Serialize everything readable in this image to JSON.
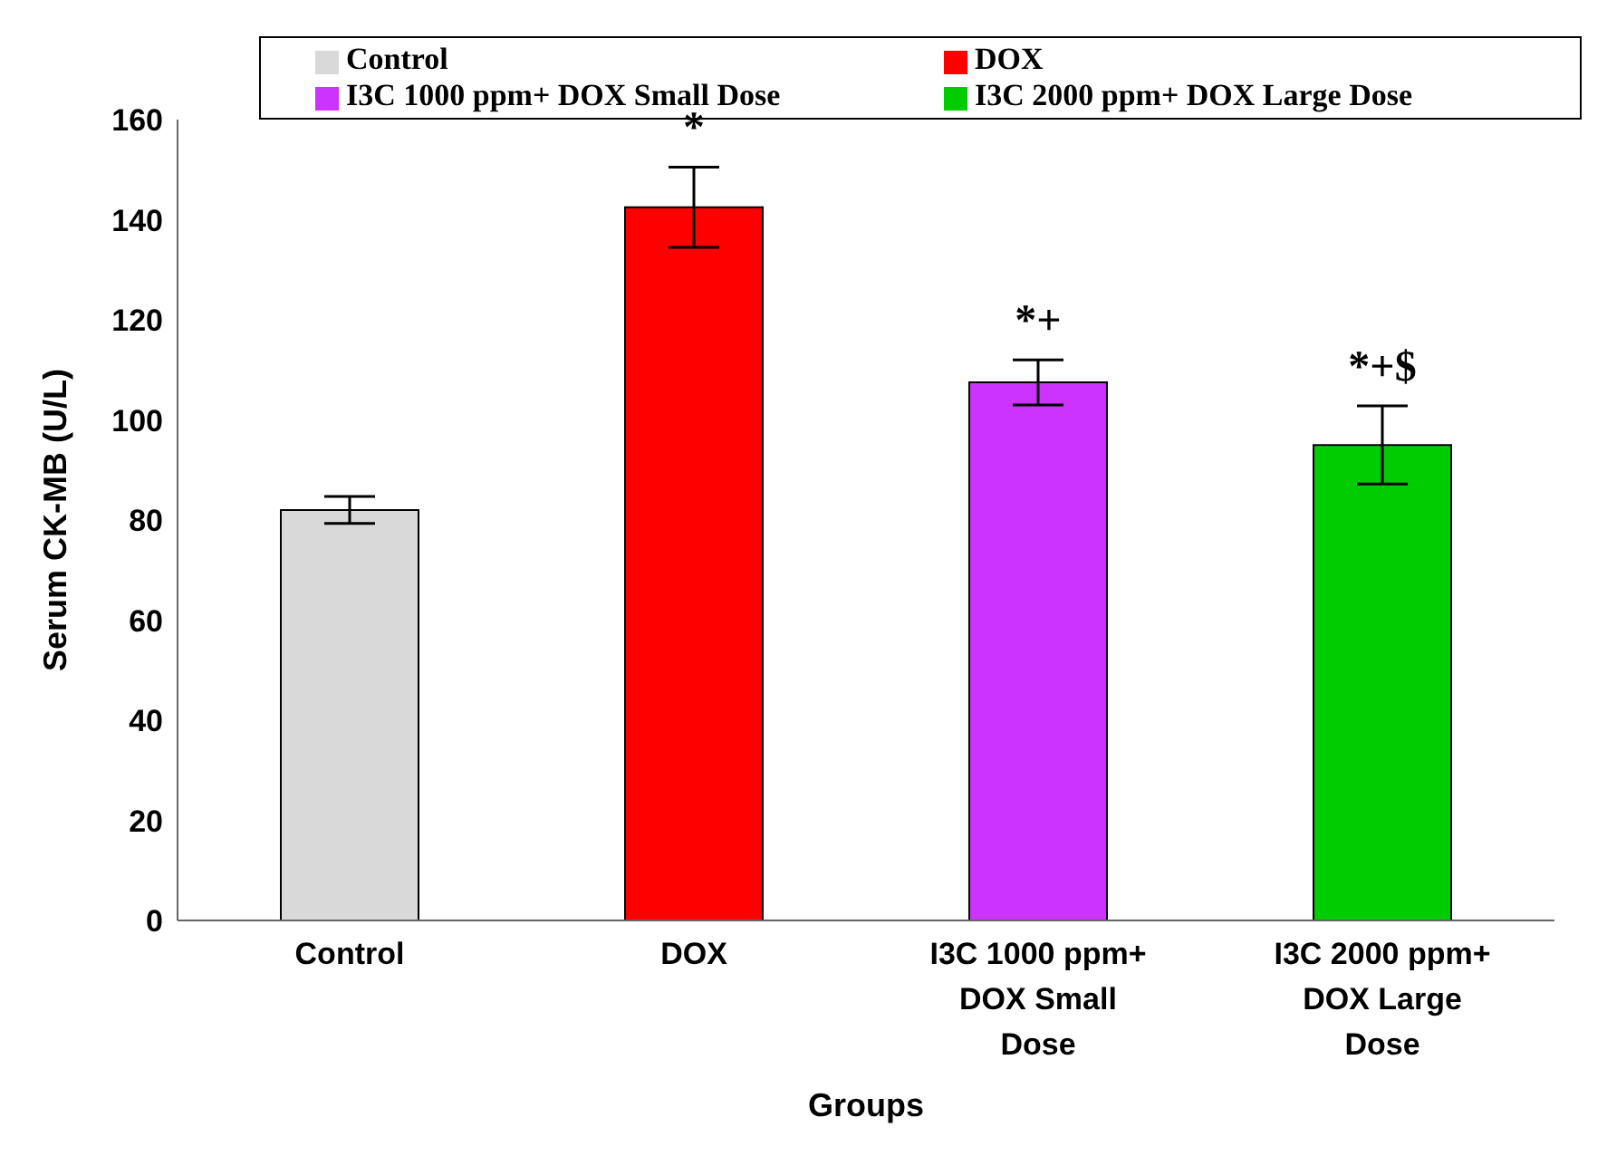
{
  "chart_data": {
    "type": "bar",
    "xlabel": "Groups",
    "ylabel": "Serum CK-MB (U/L)",
    "categories": [
      "Control",
      "DOX",
      "I3C 1000 ppm+ DOX Small Dose",
      "I3C 2000 ppm+ DOX Large Dose"
    ],
    "series": [
      {
        "name": "Control",
        "color": "#d9d9d9",
        "values": [
          82,
          null,
          null,
          null
        ],
        "errors": [
          2.7,
          null,
          null,
          null
        ]
      },
      {
        "name": "DOX",
        "color": "#ff0000",
        "values": [
          null,
          142.5,
          null,
          null
        ],
        "errors": [
          null,
          8,
          null,
          null
        ]
      },
      {
        "name": "I3C 1000 ppm+ DOX Small Dose",
        "color": "#cc33ff",
        "values": [
          null,
          null,
          107.5,
          null
        ],
        "errors": [
          null,
          null,
          4.5,
          null
        ]
      },
      {
        "name": "I3C 2000 ppm+ DOX Large Dose",
        "color": "#00cc00",
        "values": [
          null,
          null,
          null,
          95
        ],
        "errors": [
          null,
          null,
          null,
          7.8
        ]
      }
    ],
    "stacked": true,
    "ylim": [
      0,
      160
    ],
    "yticks": [
      0,
      20,
      40,
      60,
      80,
      100,
      120,
      140,
      160
    ],
    "grid": false,
    "legend": "top",
    "annotations": [
      {
        "text": "*",
        "x": "DOX",
        "y": 142.5
      },
      {
        "text": "*+",
        "x": "I3C 1000 ppm+ DOX Small Dose",
        "y": 107.5
      },
      {
        "text": "*+$",
        "x": "I3C 2000 ppm+ DOX Large Dose",
        "y": 95
      }
    ]
  }
}
